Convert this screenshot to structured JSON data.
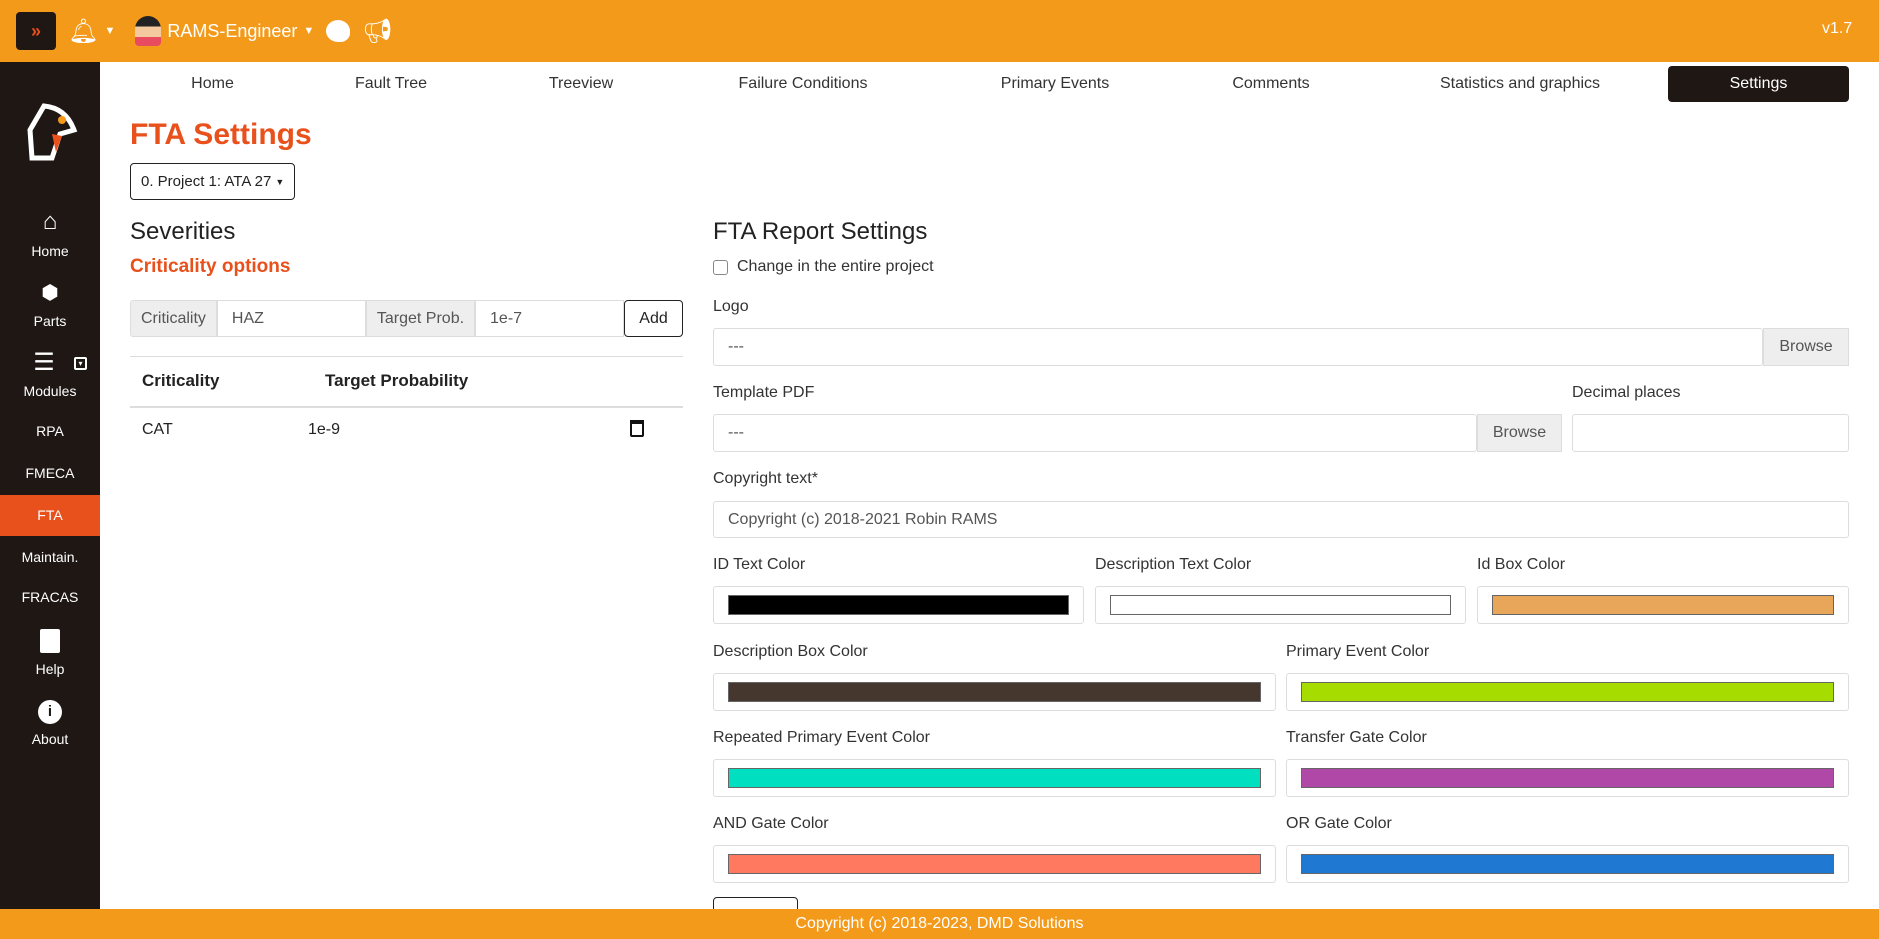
{
  "header": {
    "user": "RAMS-Engineer",
    "version": "v1.7"
  },
  "sidebar": {
    "items": [
      {
        "label": "Home"
      },
      {
        "label": "Parts"
      },
      {
        "label": "Modules"
      },
      {
        "label": "RPA"
      },
      {
        "label": "FMECA"
      },
      {
        "label": "FTA"
      },
      {
        "label": "Maintain."
      },
      {
        "label": "FRACAS"
      },
      {
        "label": "Help"
      },
      {
        "label": "About"
      }
    ]
  },
  "tabs": [
    "Home",
    "Fault Tree",
    "Treeview",
    "Failure Conditions",
    "Primary Events",
    "Comments",
    "Statistics and graphics",
    "Settings"
  ],
  "page": {
    "title": "FTA Settings",
    "project": "0. Project 1: ATA 27"
  },
  "severities": {
    "title": "Severities",
    "subtitle": "Criticality options",
    "criticality_label": "Criticality",
    "criticality_value": "HAZ",
    "target_label": "Target Prob.",
    "target_value": "1e-7",
    "add": "Add",
    "columns": [
      "Criticality",
      "Target Probability"
    ],
    "rows": [
      {
        "criticality": "CAT",
        "target": "1e-9"
      }
    ]
  },
  "report": {
    "title": "FTA Report Settings",
    "checkbox": "Change in the entire project",
    "logo_label": "Logo",
    "logo_value": "---",
    "browse": "Browse",
    "template_label": "Template PDF",
    "template_value": "---",
    "decimal_label": "Decimal places",
    "copyright_label": "Copyright text*",
    "copyright_value": "Copyright (c) 2018-2021 Robin RAMS",
    "colors": [
      {
        "label": "ID Text Color",
        "value": "#000000"
      },
      {
        "label": "Description Text Color",
        "value": "#ffffff"
      },
      {
        "label": "Id Box Color",
        "value": "#e8a65a"
      },
      {
        "label": "Description Box Color",
        "value": "#45362e"
      },
      {
        "label": "Primary Event Color",
        "value": "#a6dc00"
      },
      {
        "label": "Repeated Primary Event Color",
        "value": "#00dfbf"
      },
      {
        "label": "Transfer Gate Color",
        "value": "#b048a8"
      },
      {
        "label": "AND Gate Color",
        "value": "#ff7860"
      },
      {
        "label": "OR Gate Color",
        "value": "#1f78d1"
      }
    ]
  },
  "footer": "Copyright (c) 2018-2023, DMD Solutions"
}
